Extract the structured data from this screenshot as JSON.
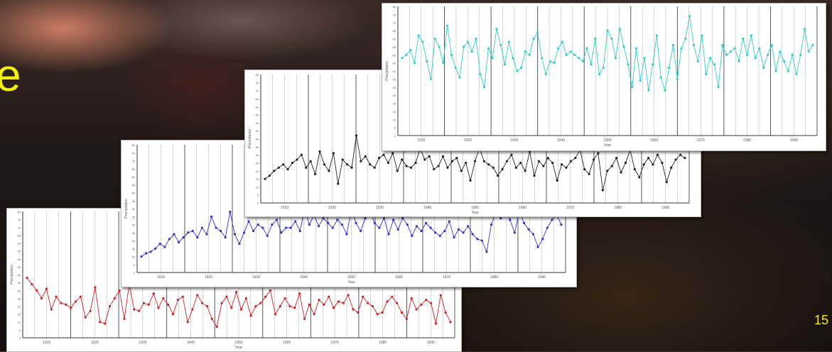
{
  "slide": {
    "title_fragment": "e",
    "page_number": "15"
  },
  "colors": {
    "title": "#f4f000",
    "series_red": "#cc2222",
    "series_blue": "#3333cc",
    "series_black": "#222222",
    "series_cyan": "#33cccc"
  },
  "chart_data": [
    {
      "type": "line",
      "xlabel": "Year",
      "ylabel": "Precipitation",
      "color": "#cc2222",
      "x_ticks": [
        "1910",
        "1920",
        "1930",
        "1940",
        "1950",
        "1960",
        "1970",
        "1980",
        "1990"
      ],
      "values": [
        38,
        34,
        30,
        25,
        31,
        18,
        26,
        22,
        21,
        19,
        23,
        26,
        13,
        17,
        32,
        10,
        9,
        20,
        25,
        30,
        12,
        34,
        18,
        17,
        22,
        21,
        28,
        19,
        25,
        21,
        15,
        24,
        26,
        10,
        18,
        27,
        22,
        20,
        12,
        7,
        22,
        26,
        19,
        29,
        18,
        25,
        14,
        20,
        22,
        26,
        30,
        15,
        20,
        25,
        20,
        19,
        28,
        12,
        21,
        15,
        24,
        21,
        26,
        19,
        23,
        22,
        27,
        18,
        16,
        26,
        22,
        20,
        15,
        16,
        23,
        26,
        22,
        16,
        12,
        25,
        18,
        21,
        24,
        22,
        9,
        27,
        16,
        10
      ]
    },
    {
      "type": "line",
      "xlabel": "Year",
      "ylabel": "Precipitation",
      "color": "#3333cc",
      "x_ticks": [
        "1910",
        "1920",
        "1930",
        "1940",
        "1950",
        "1960",
        "1970",
        "1980",
        "1990"
      ],
      "values": [
        10,
        12,
        13,
        15,
        18,
        16,
        21,
        24,
        19,
        22,
        25,
        26,
        22,
        28,
        24,
        35,
        28,
        26,
        22,
        38,
        24,
        18,
        25,
        32,
        26,
        30,
        28,
        23,
        30,
        33,
        25,
        28,
        28,
        32,
        26,
        40,
        30,
        36,
        29,
        34,
        31,
        28,
        33,
        30,
        24,
        39,
        31,
        26,
        34,
        38,
        31,
        28,
        34,
        24,
        33,
        27,
        34,
        30,
        23,
        29,
        26,
        31,
        28,
        25,
        23,
        26,
        32,
        22,
        27,
        25,
        29,
        24,
        21,
        20,
        13,
        30,
        38,
        34,
        40,
        33,
        25,
        38,
        31,
        27,
        24,
        16,
        21,
        28,
        33,
        36,
        30
      ]
    },
    {
      "type": "line",
      "xlabel": "Year",
      "ylabel": "Precipitation",
      "color": "#222222",
      "x_ticks": [
        "1910",
        "1920",
        "1930",
        "1940",
        "1950",
        "1960",
        "1970",
        "1980",
        "1990"
      ],
      "values": [
        15,
        17,
        20,
        22,
        24,
        21,
        25,
        27,
        30,
        22,
        26,
        18,
        32,
        24,
        20,
        31,
        12,
        27,
        24,
        22,
        42,
        26,
        29,
        24,
        22,
        28,
        30,
        25,
        31,
        20,
        27,
        23,
        22,
        25,
        34,
        27,
        29,
        21,
        23,
        29,
        22,
        26,
        28,
        20,
        25,
        14,
        26,
        34,
        26,
        24,
        22,
        17,
        21,
        26,
        30,
        22,
        25,
        20,
        32,
        17,
        26,
        23,
        28,
        25,
        14,
        24,
        22,
        26,
        28,
        33,
        21,
        18,
        27,
        31,
        8,
        20,
        23,
        28,
        19,
        25,
        33,
        21,
        16,
        24,
        28,
        24,
        30,
        25,
        13,
        22,
        27,
        30,
        28
      ]
    },
    {
      "type": "line",
      "xlabel": "Year",
      "ylabel": "Precipitation",
      "color": "#33cccc",
      "x_ticks": [
        "1910",
        "1920",
        "1930",
        "1940",
        "1950",
        "1960",
        "1970",
        "1980",
        "1990"
      ],
      "values": [
        48,
        50,
        53,
        45,
        62,
        58,
        46,
        35,
        60,
        55,
        45,
        68,
        50,
        42,
        36,
        55,
        58,
        52,
        60,
        38,
        30,
        54,
        48,
        66,
        56,
        44,
        58,
        48,
        40,
        42,
        52,
        50,
        60,
        64,
        48,
        38,
        46,
        45,
        54,
        58,
        50,
        52,
        50,
        48,
        46,
        54,
        44,
        60,
        38,
        42,
        65,
        60,
        48,
        66,
        55,
        44,
        30,
        54,
        34,
        48,
        28,
        44,
        62,
        36,
        28,
        42,
        56,
        35,
        54,
        60,
        74,
        56,
        46,
        62,
        38,
        48,
        44,
        30,
        56,
        50,
        52,
        54,
        46,
        60,
        50,
        62,
        48,
        54,
        42,
        50,
        56,
        40,
        52,
        46,
        40,
        50,
        38,
        50,
        66,
        52,
        56
      ]
    }
  ]
}
